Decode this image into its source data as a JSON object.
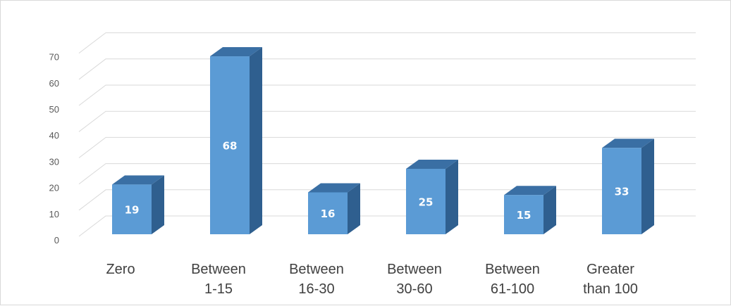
{
  "chart_data": {
    "type": "bar",
    "style": "3d-column",
    "title": "",
    "xlabel": "",
    "ylabel": "",
    "categories": [
      [
        "Zero"
      ],
      [
        "Between",
        "1-15"
      ],
      [
        "Between",
        "16-30"
      ],
      [
        "Between",
        "30-60"
      ],
      [
        "Between",
        "61-100"
      ],
      [
        "Greater",
        "than 100"
      ]
    ],
    "values": [
      19,
      68,
      16,
      25,
      15,
      33
    ],
    "data_labels": [
      "19",
      "68",
      "16",
      "25",
      "15",
      "33"
    ],
    "y_ticks": [
      "0",
      "10",
      "20",
      "30",
      "40",
      "50",
      "60",
      "70"
    ],
    "ylim": [
      0,
      70
    ],
    "grid": true,
    "legend": "none",
    "colors": {
      "bar_front": "#5b9bd5",
      "bar_top": "#3a6fa4",
      "bar_side": "#2f5f8f",
      "gridline": "#d9d9d9",
      "tick_text": "#595959",
      "category_text": "#404040",
      "data_label": "#ffffff"
    }
  }
}
